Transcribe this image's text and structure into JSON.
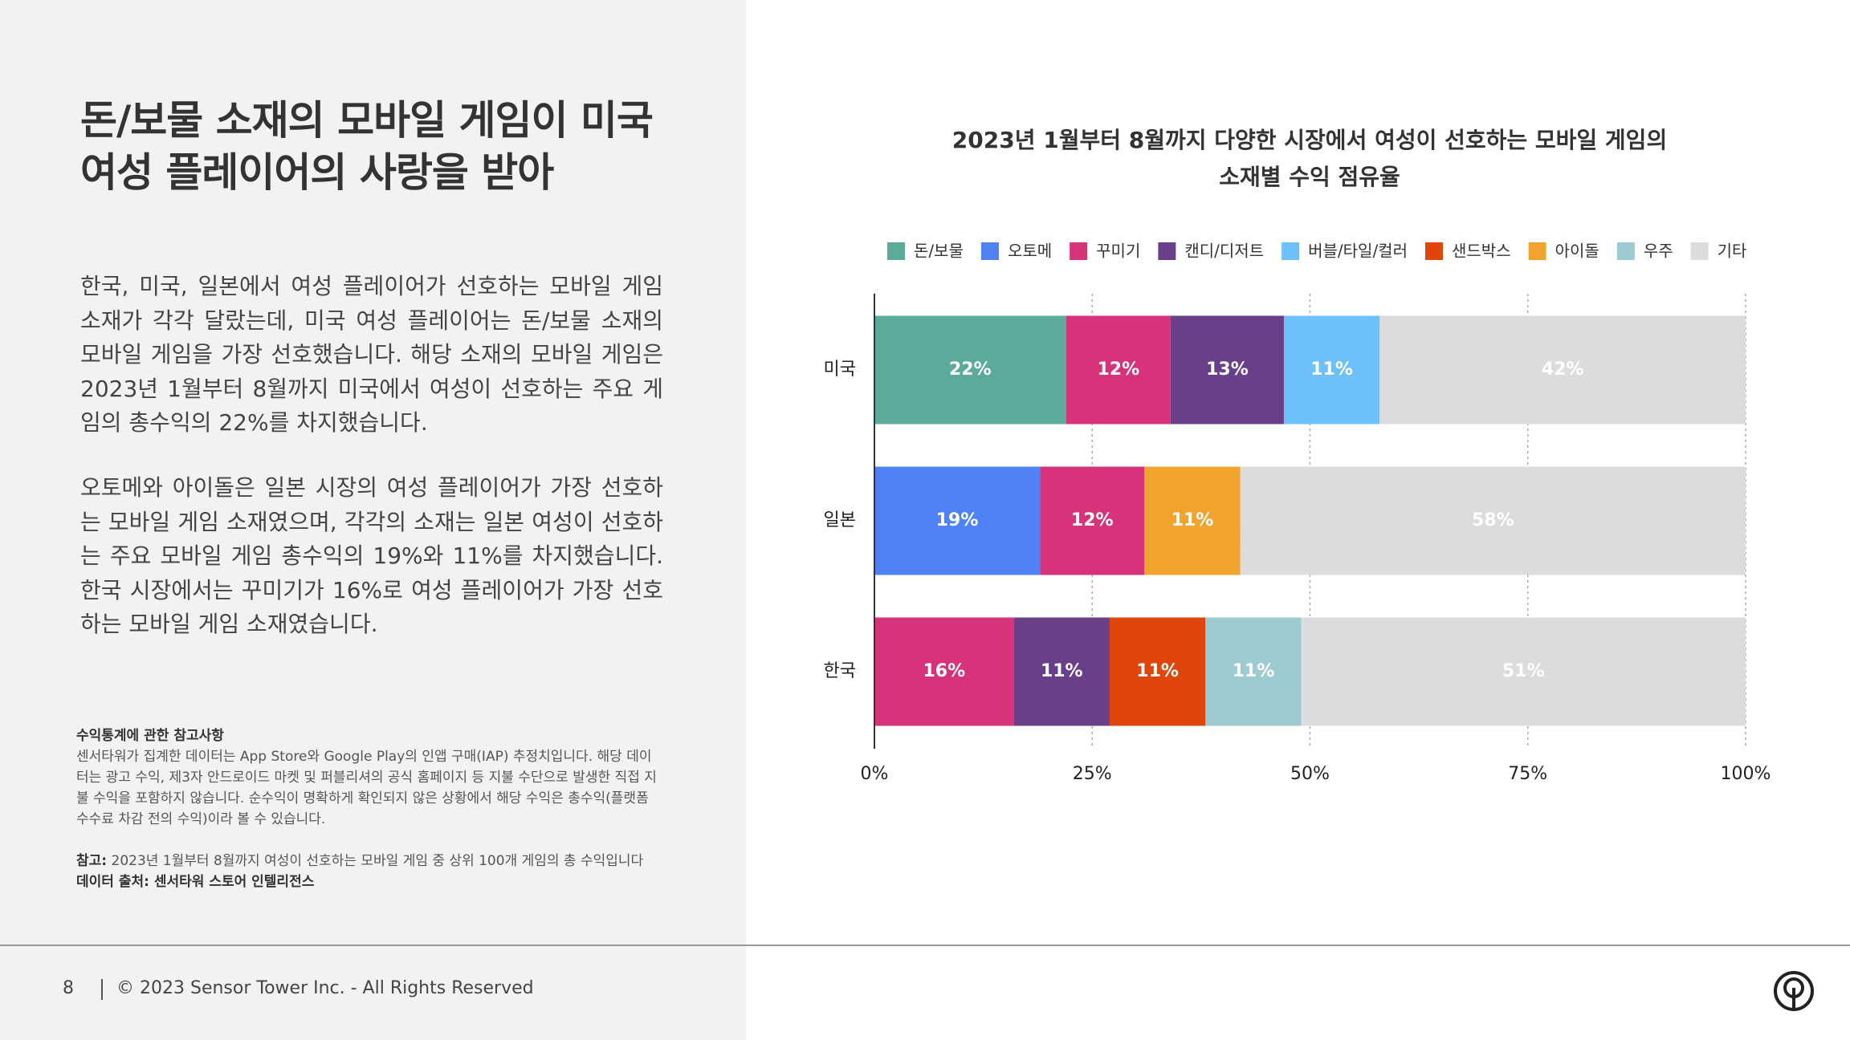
{
  "header": {
    "title_lines": [
      "돈/보물 소재의 모바일 게임이 미국",
      "여성 플레이어의 사랑을 받아"
    ]
  },
  "body": {
    "paragraphs": [
      "한국, 미국, 일본에서 여성 플레이어가 선호하는 모바일 게임 소재가 각각 달랐는데, 미국 여성 플레이어는 돈/보물 소재의 모바일 게임을 가장 선호했습니다. 해당 소재의 모바일 게임은 2023년 1월부터 8월까지 미국에서 여성이 선호하는 주요 게임의 총수익의 22%를 차지했습니다.",
      "오토메와 아이돌은 일본 시장의 여성 플레이어가 가장 선호하는 모바일 게임 소재였으며, 각각의 소재는 일본 여성이 선호하는 주요 모바일 게임 총수익의 19%와 11%를 차지했습니다. 한국 시장에서는 꾸미기가 16%로 여성 플레이어가 가장 선호하는 모바일 게임 소재였습니다."
    ]
  },
  "notes": {
    "heading": "수익통계에 관한 참고사항",
    "text": "센서타워가 집계한 데이터는 App Store와 Google Play의 인앱 구매(IAP) 추정치입니다. 해당 데이터는 광고 수익, 제3자 안드로이드 마켓 및 퍼블리셔의 공식 홈페이지 등 지불 수단으로 발생한 직접 지불 수익을 포함하지 않습니다. 순수익이 명확하게 확인되지 않은 상황에서 해당 수익은 총수익(플랫폼 수수료 차감 전의 수익)이라 볼 수 있습니다.",
    "reference_label": "참고:",
    "reference": "2023년 1월부터 8월까지 여성이 선호하는 모바일 게임 중 상위 100개 게임의 총 수익입니다",
    "source": "데이터 출처: 센서타워 스토어 인텔리전스"
  },
  "footer": {
    "page": "8",
    "copyright": "© 2023 Sensor Tower Inc. - All Rights Reserved"
  },
  "chart_data": {
    "type": "stacked_barh",
    "title": [
      "2023년 1월부터 8월까지 다양한 시장에서 여성이 선호하는 모바일 게임의",
      "소재별 수익 점유율"
    ],
    "watermark": "SensorTower",
    "categories": [
      "미국",
      "일본",
      "한국"
    ],
    "series": [
      {
        "name": "돈/보물",
        "color": "#5aab9c",
        "values": [
          22,
          null,
          null
        ],
        "value_labels": [
          "22%",
          null,
          null
        ]
      },
      {
        "name": "오토메",
        "color": "#4f83f5",
        "values": [
          null,
          19,
          null
        ],
        "value_labels": [
          null,
          "19%",
          null
        ]
      },
      {
        "name": "꾸미기",
        "color": "#d6337a",
        "values": [
          12,
          12,
          16
        ],
        "value_labels": [
          "12%",
          "12%",
          "16%"
        ]
      },
      {
        "name": "캔디/디저트",
        "color": "#6a3f8a",
        "values": [
          13,
          null,
          11
        ],
        "value_labels": [
          "13%",
          null,
          "11%"
        ]
      },
      {
        "name": "버블/타일/컬러",
        "color": "#6ec0f9",
        "values": [
          11,
          null,
          null
        ],
        "value_labels": [
          "11%",
          null,
          null
        ]
      },
      {
        "name": "샌드박스",
        "color": "#e0460a",
        "values": [
          null,
          null,
          11
        ],
        "value_labels": [
          null,
          null,
          "11%"
        ]
      },
      {
        "name": "아이돌",
        "color": "#f0a42e",
        "values": [
          null,
          11,
          null
        ],
        "value_labels": [
          null,
          "11%",
          null
        ]
      },
      {
        "name": "우주",
        "color": "#9ccbd2",
        "values": [
          null,
          null,
          11
        ],
        "value_labels": [
          null,
          null,
          "11%"
        ]
      },
      {
        "name": "기타",
        "color": "#dcdcdc",
        "values": [
          42,
          58,
          51
        ],
        "value_labels": [
          "42%",
          "58%",
          "51%"
        ]
      }
    ],
    "xlim": [
      0,
      100
    ],
    "xticks": [
      {
        "value": 0,
        "label": "0%"
      },
      {
        "value": 25,
        "label": "25%"
      },
      {
        "value": 50,
        "label": "50%"
      },
      {
        "value": 75,
        "label": "75%"
      },
      {
        "value": 100,
        "label": "100%"
      }
    ],
    "grid": true,
    "legend": "top"
  }
}
